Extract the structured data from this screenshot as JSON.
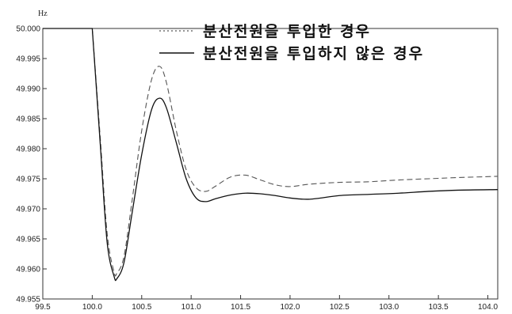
{
  "chart_data": {
    "type": "line",
    "title": "",
    "xlabel": "",
    "ylabel": "Hz",
    "xlim": [
      99.5,
      104.1
    ],
    "ylim": [
      49.955,
      50.0
    ],
    "x_ticks": [
      99.5,
      100.0,
      100.5,
      101.0,
      101.5,
      102.0,
      102.5,
      103.0,
      103.5,
      104.0
    ],
    "x_tick_labels": [
      "99.5",
      "100.0",
      "100.5",
      "101.0",
      "101.5",
      "102.0",
      "102.5",
      "103.0",
      "103.5",
      "104.0"
    ],
    "y_ticks": [
      49.955,
      49.96,
      49.965,
      49.97,
      49.975,
      49.98,
      49.985,
      49.99,
      49.995,
      50.0
    ],
    "y_tick_labels": [
      "49.955",
      "49.960",
      "49.965",
      "49.970",
      "49.975",
      "49.980",
      "49.985",
      "49.990",
      "49.995",
      "50.000"
    ],
    "grid": false,
    "legend_position": "top-right",
    "series": [
      {
        "name": "분산전원을 투입한 경우",
        "style": "dashed",
        "color": "#555555",
        "x": [
          99.5,
          100.0,
          100.08,
          100.15,
          100.22,
          100.25,
          100.32,
          100.4,
          100.5,
          100.6,
          100.68,
          100.75,
          100.85,
          100.95,
          101.05,
          101.15,
          101.25,
          101.4,
          101.55,
          101.7,
          101.85,
          102.0,
          102.2,
          102.5,
          102.8,
          103.1,
          103.4,
          103.7,
          104.1
        ],
        "y": [
          50.0,
          50.0,
          49.982,
          49.966,
          49.9595,
          49.9593,
          49.962,
          49.971,
          49.983,
          49.9915,
          49.9937,
          49.991,
          49.983,
          49.9765,
          49.9735,
          49.9729,
          49.9738,
          49.9753,
          49.9756,
          49.9748,
          49.974,
          49.9737,
          49.9741,
          49.9744,
          49.9745,
          49.9748,
          49.975,
          49.9752,
          49.9754
        ]
      },
      {
        "name": "분산전원을 투입하지 않은 경우",
        "style": "solid",
        "color": "#111111",
        "x": [
          99.5,
          100.0,
          100.08,
          100.15,
          100.22,
          100.25,
          100.32,
          100.4,
          100.5,
          100.6,
          100.68,
          100.75,
          100.85,
          100.95,
          101.05,
          101.15,
          101.25,
          101.4,
          101.55,
          101.7,
          101.85,
          102.0,
          102.2,
          102.5,
          102.8,
          103.1,
          103.4,
          103.7,
          104.1
        ],
        "y": [
          50.0,
          50.0,
          49.981,
          49.9645,
          49.9588,
          49.9584,
          49.961,
          49.969,
          49.979,
          49.9865,
          49.9884,
          49.9868,
          49.981,
          49.975,
          49.9718,
          49.9712,
          49.9717,
          49.9723,
          49.9726,
          49.9725,
          49.9722,
          49.9718,
          49.9716,
          49.9722,
          49.9724,
          49.9726,
          49.9729,
          49.9731,
          49.9732
        ]
      }
    ]
  }
}
